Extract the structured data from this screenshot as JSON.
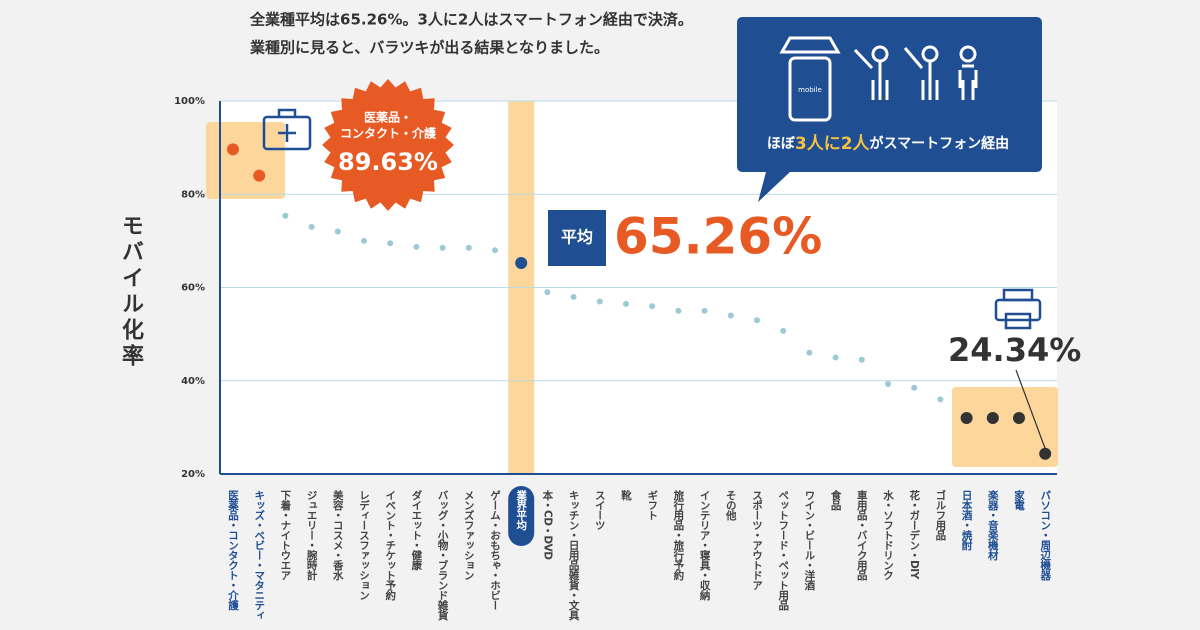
{
  "chart_data": {
    "type": "dot",
    "title_lines": [
      "全業種平均は65.26%。3人に2人はスマートフォン経由で決済。",
      "業種別に見ると、バラツキが出る結果となりました。"
    ],
    "y_axis_label": "モバイル化率",
    "categories": [
      "医薬品・コンタクト・介護",
      "キッズ・ベビー・マタニティ",
      "下着・ナイトウエア",
      "ジュエリー・腕時計",
      "美容・コスメ・香水",
      "レディースファッション",
      "イベント・チケット予約",
      "ダイエット・健康",
      "バッグ・小物・ブランド雑貨",
      "メンズファッション",
      "ゲーム・おもちゃ・ホビー",
      "業界平均",
      "本・CD・DVD",
      "キッチン・日用品雑貨・文具",
      "スイーツ",
      "靴",
      "ギフト",
      "旅行用品・旅行予約",
      "インテリア・寝具・収納",
      "その他",
      "スポーツ・アウトドア",
      "ペットフード・ペット用品",
      "ワイン・ビール・洋酒",
      "食品",
      "車用品・バイク用品",
      "水・ソフトドリンク",
      "花・ガーデン・DIY",
      "ゴルフ用品",
      "日本酒・焼酎",
      "楽器・音楽機材",
      "家電",
      "パソコン・周辺機器"
    ],
    "values": [
      89.63,
      84,
      75.4,
      73,
      72,
      70,
      69.5,
      68.7,
      68.5,
      68.5,
      68,
      65.26,
      59,
      58,
      57,
      56.5,
      56,
      55,
      55,
      54,
      53,
      50.7,
      46,
      45,
      44.5,
      39.3,
      38.5,
      36,
      32,
      32,
      32,
      24.34
    ],
    "value_labels": [
      "89.63%",
      null,
      null,
      null,
      null,
      null,
      null,
      null,
      null,
      null,
      null,
      "65.26%",
      null,
      null,
      null,
      null,
      null,
      null,
      null,
      null,
      null,
      null,
      null,
      null,
      null,
      null,
      null,
      null,
      null,
      null,
      null,
      "24.34%"
    ],
    "colors": [
      "#e85a24",
      "#e85a24",
      "#9cc9d6",
      "#9cc9d6",
      "#9cc9d6",
      "#9cc9d6",
      "#9cc9d6",
      "#9cc9d6",
      "#9cc9d6",
      "#9cc9d6",
      "#9cc9d6",
      "#1f4e93",
      "#9cc9d6",
      "#9cc9d6",
      "#9cc9d6",
      "#9cc9d6",
      "#9cc9d6",
      "#9cc9d6",
      "#9cc9d6",
      "#9cc9d6",
      "#9cc9d6",
      "#9cc9d6",
      "#9cc9d6",
      "#9cc9d6",
      "#9cc9d6",
      "#9cc9d6",
      "#9cc9d6",
      "#9cc9d6",
      "#333333",
      "#333333",
      "#333333",
      "#333333"
    ],
    "ylim": [
      20,
      100
    ],
    "yticks": [
      {
        "value": 20,
        "label": "20%"
      },
      {
        "value": 40,
        "label": "40%"
      },
      {
        "value": 60,
        "label": "60%"
      },
      {
        "value": 80,
        "label": "80%"
      },
      {
        "value": 100,
        "label": "100%"
      }
    ],
    "grid": true,
    "badge_lines": [
      "医薬品・",
      "コンタクト・介護"
    ],
    "average_tag": "平均",
    "callout_parts": [
      "ほぼ",
      "3人に2人",
      "がスマートフォン経由"
    ],
    "icon_label": "mobile"
  }
}
